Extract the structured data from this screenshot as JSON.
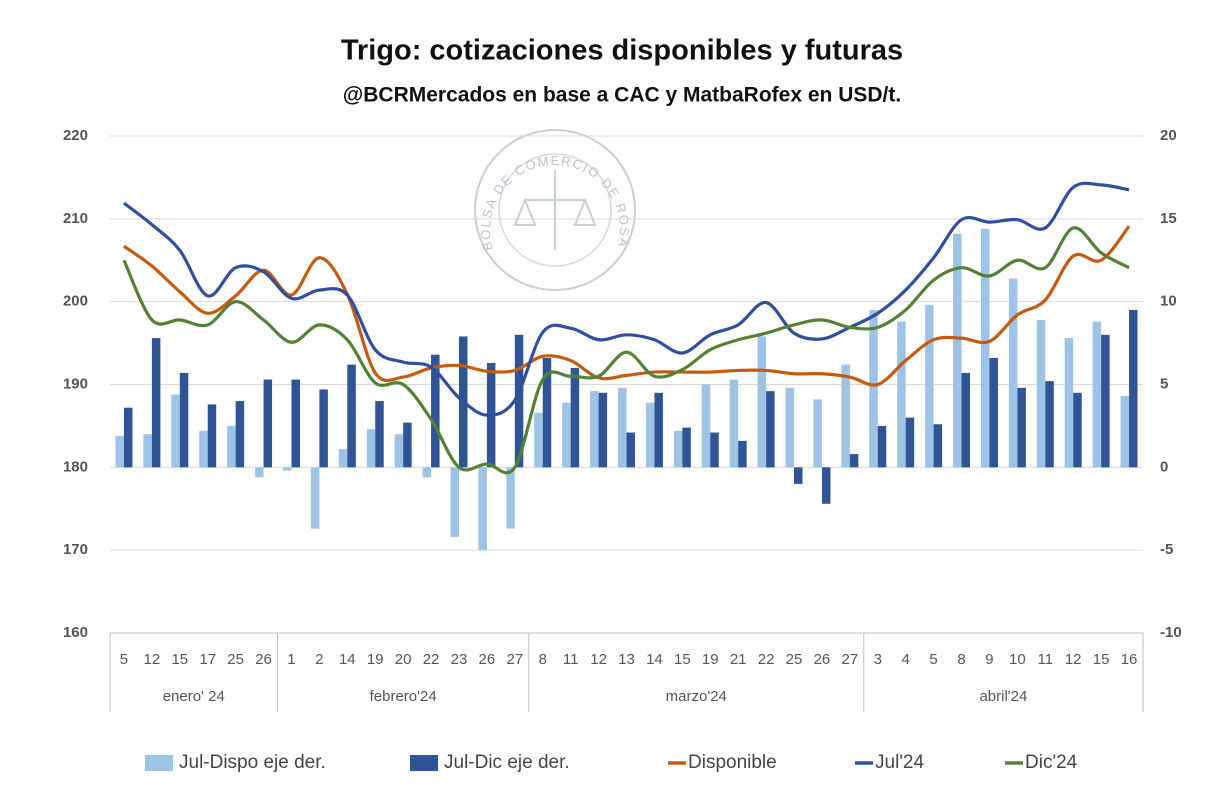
{
  "chart_data": {
    "type": "combo",
    "title": "Trigo: cotizaciones disponibles y futuras",
    "subtitle": "@BCRMercados en base a CAC y MatbaRofex en USD/t.",
    "watermark": "BOLSA DE COMERCIO DE ROSARIO",
    "groups": [
      {
        "label": "enero' 24",
        "categories": [
          "5",
          "12",
          "15",
          "17",
          "25",
          "26"
        ]
      },
      {
        "label": "febrero'24",
        "categories": [
          "1",
          "2",
          "14",
          "19",
          "20",
          "22",
          "23",
          "26",
          "27"
        ]
      },
      {
        "label": "marzo'24",
        "categories": [
          "8",
          "11",
          "12",
          "13",
          "14",
          "15",
          "19",
          "21",
          "22",
          "25",
          "26",
          "27"
        ]
      },
      {
        "label": "abril'24",
        "categories": [
          "3",
          "4",
          "5",
          "8",
          "9",
          "10",
          "11",
          "12",
          "15",
          "16"
        ]
      }
    ],
    "ylim": [
      160,
      220
    ],
    "yticks": [
      160,
      170,
      180,
      190,
      200,
      210,
      220
    ],
    "y2lim": [
      -10,
      20
    ],
    "y2ticks": [
      -10,
      -5,
      0,
      5,
      10,
      15,
      20
    ],
    "grid": true,
    "series": [
      {
        "name": "Jul-Dispo eje der.",
        "type": "bar",
        "axis": "y2",
        "color": "#9dc3e6",
        "values": [
          1.9,
          2.0,
          4.4,
          2.2,
          2.5,
          -0.6,
          -0.2,
          -3.7,
          1.1,
          2.3,
          2.0,
          -0.6,
          -4.2,
          -5.0,
          -3.7,
          3.3,
          3.9,
          4.6,
          4.8,
          3.9,
          2.2,
          5.0,
          5.3,
          7.9,
          4.8,
          4.1,
          6.2,
          9.5,
          8.8,
          9.8,
          14.1,
          14.4,
          11.4,
          8.9,
          7.8,
          8.8,
          4.3
        ]
      },
      {
        "name": "Jul-Dic eje der.",
        "type": "bar",
        "axis": "y2",
        "color": "#2f5597",
        "values": [
          3.6,
          7.8,
          5.7,
          3.8,
          4.0,
          5.3,
          5.3,
          4.7,
          6.2,
          4.0,
          2.7,
          6.8,
          7.9,
          6.3,
          8.0,
          6.6,
          6.0,
          4.5,
          2.1,
          4.5,
          2.4,
          2.1,
          1.6,
          4.6,
          -1.0,
          -2.2,
          0.8,
          2.5,
          3.0,
          2.6,
          5.7,
          6.6,
          4.8,
          5.2,
          4.5,
          8.0,
          9.5
        ]
      },
      {
        "name": "Disponible",
        "type": "line",
        "color": "#c55a11",
        "values": [
          206.7,
          204.3,
          201.2,
          198.6,
          200.7,
          203.8,
          200.8,
          205.3,
          200.9,
          191.4,
          190.9,
          192.0,
          192.3,
          191.6,
          191.7,
          193.4,
          192.9,
          190.8,
          191.1,
          191.5,
          191.5,
          191.5,
          191.7,
          191.7,
          191.3,
          191.3,
          190.9,
          190.0,
          192.9,
          195.4,
          195.6,
          195.2,
          198.4,
          200.2,
          205.5,
          205.0,
          209.1
        ]
      },
      {
        "name": "Jul'24",
        "type": "line",
        "color": "#2f4f9f",
        "values": [
          211.9,
          209.3,
          206.2,
          200.7,
          204.1,
          203.6,
          200.4,
          201.4,
          200.8,
          194.2,
          192.7,
          192.1,
          188.4,
          186.3,
          188.1,
          196.3,
          196.8,
          195.4,
          196.0,
          195.4,
          193.8,
          196.0,
          197.2,
          199.9,
          196.2,
          195.5,
          196.9,
          198.6,
          201.4,
          205.3,
          209.9,
          209.6,
          209.9,
          208.9,
          213.8,
          214.1,
          213.5
        ]
      },
      {
        "name": "Dic'24",
        "type": "line",
        "color": "#548235",
        "values": [
          205.0,
          197.8,
          197.8,
          197.2,
          200.0,
          197.8,
          195.1,
          197.2,
          195.4,
          190.2,
          190.0,
          185.8,
          180.0,
          180.4,
          180.0,
          190.6,
          191.0,
          191.0,
          193.9,
          191.0,
          191.8,
          194.2,
          195.4,
          196.2,
          197.2,
          197.8,
          196.9,
          196.9,
          199.0,
          202.6,
          204.1,
          203.1,
          205.0,
          204.1,
          208.9,
          205.9,
          204.1
        ]
      }
    ]
  }
}
